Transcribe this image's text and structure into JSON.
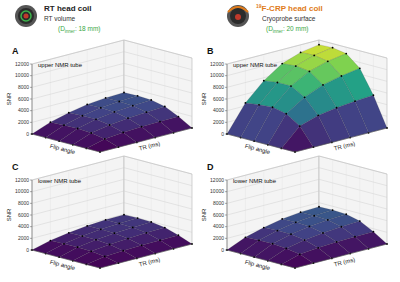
{
  "header": {
    "left": {
      "title": "RT head coil",
      "subtitle": "RT volume",
      "diameter": [
        "(D",
        "inner",
        ": 18 mm)"
      ]
    },
    "right": {
      "isotope": "19",
      "title": "F-CRP head coil",
      "subtitle": "Cryoprobe surface",
      "diameter": [
        "(D",
        "inner",
        ": 20 mm)"
      ]
    }
  },
  "chart_data": [
    {
      "type": "surface",
      "title": "A",
      "annotation": "upper NMR tube",
      "xlabel": "TR (ms)",
      "ylabel": "Flip angle",
      "zlabel": "SNR",
      "grid": true,
      "x": [
        0,
        600,
        1200,
        1800,
        2400,
        3000
      ],
      "y": [
        0,
        18,
        36,
        54,
        72,
        90
      ],
      "xlim": [
        0,
        3000
      ],
      "ylim": [
        0,
        90
      ],
      "zlim": [
        0,
        12000
      ],
      "zticks": [
        0,
        2000,
        4000,
        6000,
        8000,
        10000,
        12000
      ],
      "z": [
        [
          0,
          0,
          0,
          0,
          0,
          0
        ],
        [
          0,
          800,
          1100,
          1250,
          1300,
          1350
        ],
        [
          0,
          1200,
          1750,
          2100,
          2300,
          2450
        ],
        [
          0,
          1350,
          2100,
          2550,
          2800,
          2950
        ],
        [
          0,
          1300,
          2100,
          2650,
          2900,
          3050
        ],
        [
          0,
          1200,
          2000,
          2600,
          2900,
          3000
        ]
      ]
    },
    {
      "type": "surface",
      "title": "B",
      "annotation": "upper NMR tube",
      "xlabel": "TR (ms)",
      "ylabel": "Flip angle",
      "zlabel": "SNR",
      "grid": true,
      "x": [
        0,
        600,
        1200,
        1800,
        2400,
        3000
      ],
      "y": [
        0,
        18,
        36,
        54,
        72,
        90
      ],
      "xlim": [
        0,
        3000
      ],
      "ylim": [
        0,
        90
      ],
      "zlim": [
        0,
        12000
      ],
      "zticks": [
        0,
        2000,
        4000,
        6000,
        8000,
        10000,
        12000
      ],
      "z": [
        [
          0,
          0,
          0,
          0,
          0,
          0
        ],
        [
          0,
          3000,
          4000,
          4500,
          4800,
          5000
        ],
        [
          0,
          4500,
          6500,
          7800,
          8500,
          9000
        ],
        [
          0,
          5000,
          7800,
          9500,
          10400,
          10900
        ],
        [
          0,
          4800,
          7800,
          9800,
          10800,
          11300
        ],
        [
          0,
          4500,
          7500,
          9600,
          10700,
          11200
        ]
      ]
    },
    {
      "type": "surface",
      "title": "C",
      "annotation": "lower NMR tube",
      "xlabel": "TR (ms)",
      "ylabel": "Flip angle",
      "zlabel": "SNR",
      "grid": true,
      "x": [
        0,
        600,
        1200,
        1800,
        2400,
        3000
      ],
      "y": [
        0,
        18,
        36,
        54,
        72,
        90
      ],
      "xlim": [
        0,
        3000
      ],
      "ylim": [
        0,
        90
      ],
      "zlim": [
        0,
        12000
      ],
      "zticks": [
        0,
        2000,
        4000,
        6000,
        8000,
        10000,
        12000
      ],
      "z": [
        [
          0,
          0,
          0,
          0,
          0,
          0
        ],
        [
          0,
          550,
          700,
          800,
          850,
          880
        ],
        [
          0,
          800,
          1150,
          1350,
          1500,
          1580
        ],
        [
          0,
          900,
          1350,
          1650,
          1820,
          1920
        ],
        [
          0,
          850,
          1350,
          1700,
          1880,
          1980
        ],
        [
          0,
          800,
          1300,
          1680,
          1880,
          1950
        ]
      ]
    },
    {
      "type": "surface",
      "title": "D",
      "annotation": "lower NMR tube",
      "xlabel": "TR (ms)",
      "ylabel": "Flip angle",
      "zlabel": "SNR",
      "grid": true,
      "x": [
        0,
        600,
        1200,
        1800,
        2400,
        3000
      ],
      "y": [
        0,
        18,
        36,
        54,
        72,
        90
      ],
      "xlim": [
        0,
        3000
      ],
      "ylim": [
        0,
        90
      ],
      "zlim": [
        0,
        12000
      ],
      "zticks": [
        0,
        2000,
        4000,
        6000,
        8000,
        10000,
        12000
      ],
      "z": [
        [
          0,
          0,
          0,
          0,
          0,
          0
        ],
        [
          0,
          900,
          1200,
          1380,
          1450,
          1500
        ],
        [
          0,
          1300,
          1900,
          2300,
          2550,
          2700
        ],
        [
          0,
          1500,
          2300,
          2800,
          3100,
          3250
        ],
        [
          0,
          1450,
          2300,
          2900,
          3200,
          3350
        ],
        [
          0,
          1350,
          2200,
          2850,
          3200,
          3300
        ]
      ]
    }
  ]
}
